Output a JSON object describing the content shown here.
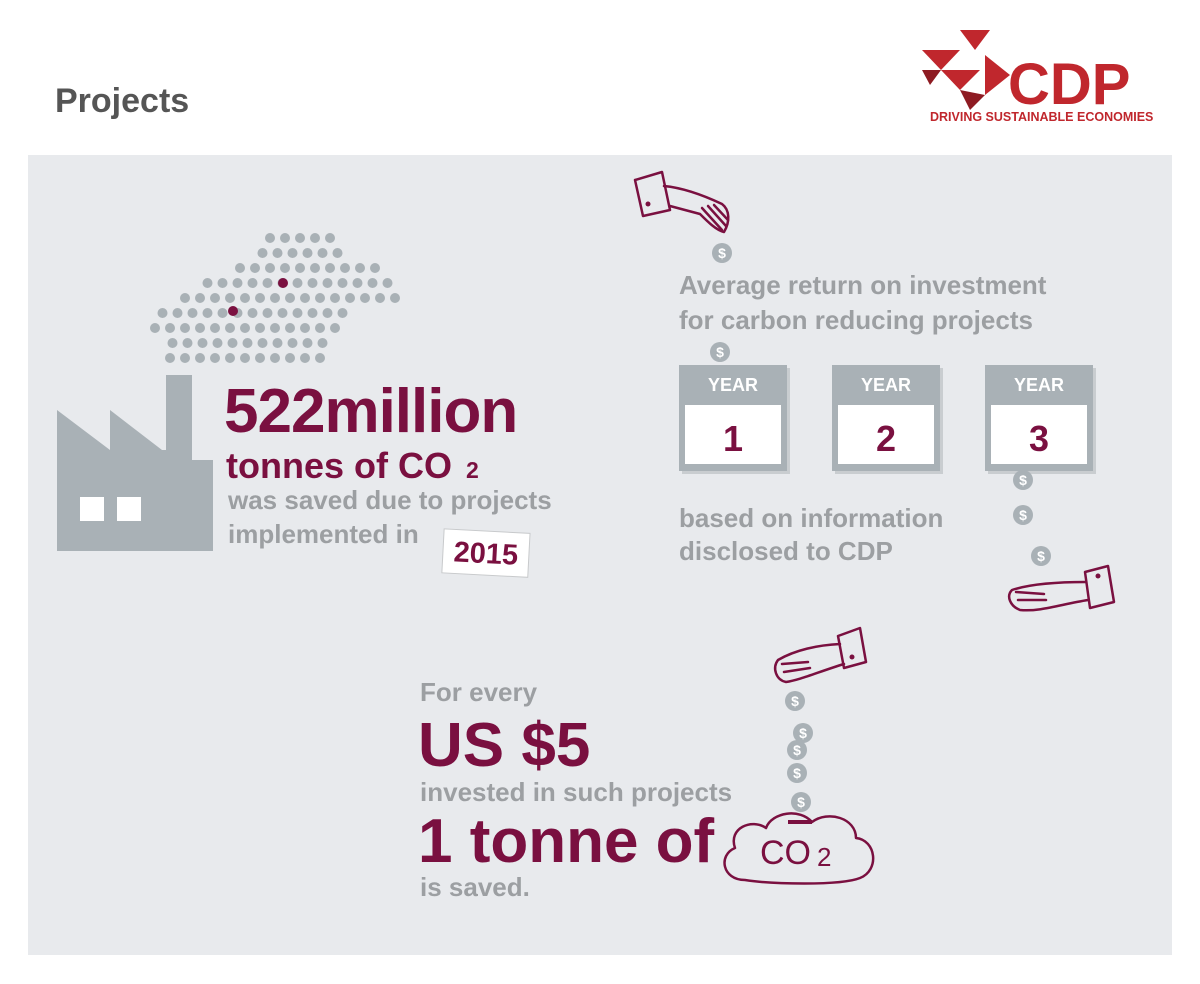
{
  "header": {
    "title": "Projects",
    "logo": {
      "name": "CDP",
      "tagline": "DRIVING SUSTAINABLE ECONOMIES"
    }
  },
  "savings": {
    "amount": "522million",
    "unit": "tonnes of CO",
    "unit_subscript": "2",
    "lines": [
      "was saved due to projects",
      "implemented in"
    ],
    "year": "2015"
  },
  "roi": {
    "lines": [
      "Average return on investment",
      "for carbon reducing projects"
    ],
    "years": [
      {
        "label": "YEAR",
        "number": "1"
      },
      {
        "label": "YEAR",
        "number": "2"
      },
      {
        "label": "YEAR",
        "number": "3"
      }
    ],
    "note": [
      "based on information",
      "disclosed to CDP"
    ]
  },
  "cost": {
    "intro": "For every",
    "amount": "US $5",
    "middle": "invested in such projects",
    "result": "1 tonne of",
    "gas": "CO",
    "gas_subscript": "2",
    "outro": "is saved."
  },
  "coin_symbol": "$"
}
